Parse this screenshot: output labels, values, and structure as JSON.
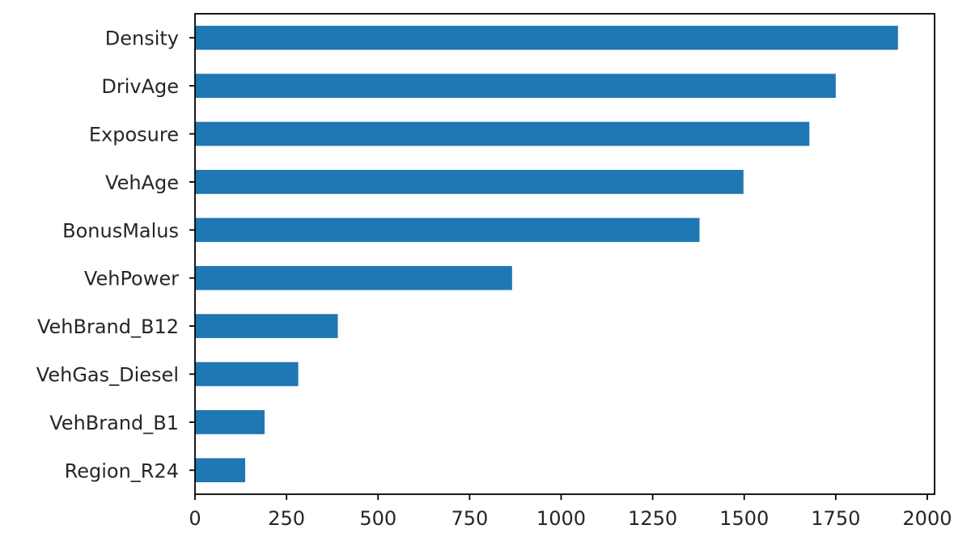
{
  "chart_data": {
    "type": "bar",
    "orientation": "horizontal",
    "categories": [
      "Density",
      "DrivAge",
      "Exposure",
      "VehAge",
      "BonusMalus",
      "VehPower",
      "VehBrand_B12",
      "VehGas_Diesel",
      "VehBrand_B1",
      "Region_R24"
    ],
    "values": [
      1920,
      1750,
      1678,
      1498,
      1378,
      866,
      390,
      282,
      190,
      137
    ],
    "xlim": [
      0,
      2020
    ],
    "xticks": [
      0,
      250,
      500,
      750,
      1000,
      1250,
      1500,
      1750,
      2000
    ],
    "xtick_labels": [
      "0",
      "250",
      "500",
      "750",
      "1000",
      "1250",
      "1500",
      "1750",
      "2000"
    ],
    "title": "",
    "xlabel": "",
    "ylabel": "",
    "bar_color": "#1f77b4",
    "grid": false,
    "legend": "none"
  }
}
